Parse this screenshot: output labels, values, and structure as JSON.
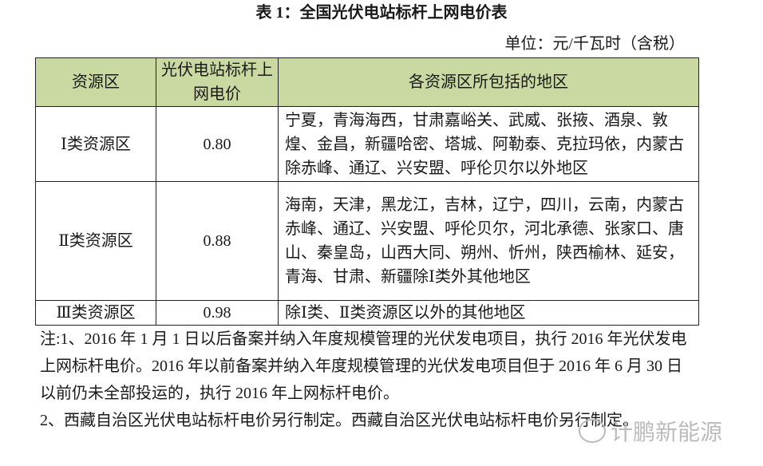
{
  "title": "表 1：全国光伏电站标杆上网电价表",
  "unit": "单位：元/千瓦时（含税）",
  "table": {
    "headers": [
      "资源区",
      "光伏电站标杆上网电价",
      "各资源区所包括的地区"
    ],
    "rows": [
      {
        "zone": "Ⅰ类资源区",
        "price": "0.80",
        "regions": "宁夏，青海海西，甘肃嘉峪关、武威、张掖、酒泉、敦煌、金昌，新疆哈密、塔城、阿勒泰、克拉玛依，内蒙古除赤峰、通辽、兴安盟、呼伦贝尔以外地区"
      },
      {
        "zone": "Ⅱ类资源区",
        "price": "0.88",
        "regions": "海南，天津，黑龙江，吉林，辽宁，四川，云南，内蒙古赤峰、通辽、兴安盟、呼伦贝尔，河北承德、张家口、唐山、秦皇岛，山西大同、朔州、忻州，陕西榆林、延安，青海、甘肃、新疆除Ⅰ类外其他地区"
      },
      {
        "zone": "Ⅲ类资源区",
        "price": "0.98",
        "regions": "除Ⅰ类、Ⅱ类资源区以外的其他地区"
      }
    ],
    "header_color": "#c9d9a1"
  },
  "notes": [
    "注:1、2016 年 1 月 1 日以后备案并纳入年度规模管理的光伏发电项目，执行 2016 年光伏发电上网标杆电价。2016 年以前备案并纳入年度规模管理的光伏发电项目但于 2016 年 6 月 30 日以前仍未全部投运的，执行 2016 年上网标杆电价。",
    "2、西藏自治区光伏电站标杆电价另行制定。西藏自治区光伏电站标杆电价另行制定。"
  ],
  "watermark": {
    "text": "计鹏新能源",
    "icon": "wechat-icon"
  }
}
